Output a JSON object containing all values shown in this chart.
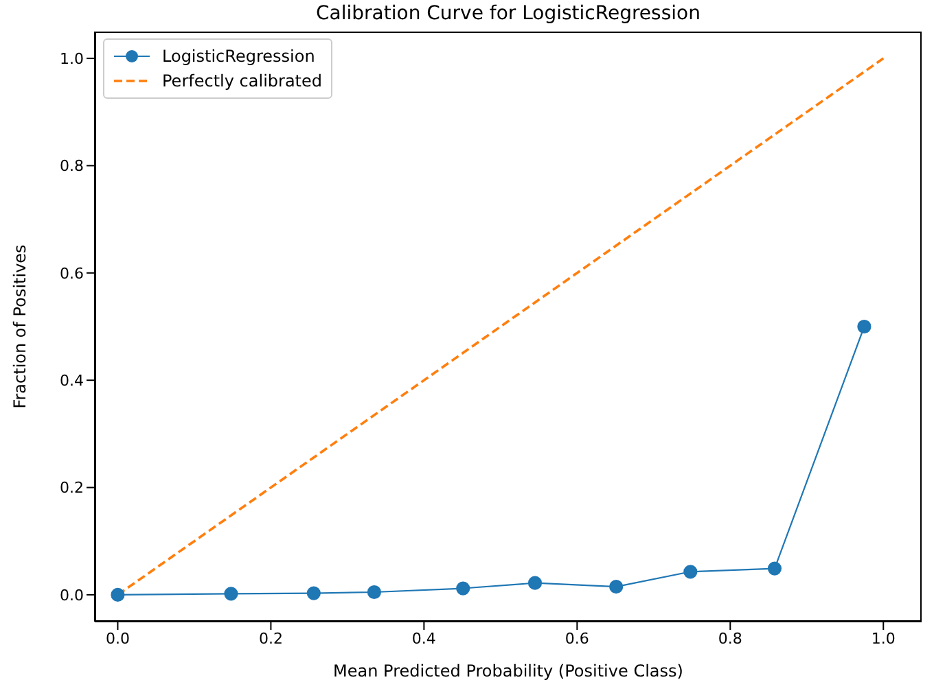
{
  "chart_data": {
    "type": "line",
    "title": "Calibration Curve for LogisticRegression",
    "xlabel": "Mean Predicted Probability (Positive Class)",
    "ylabel": "Fraction of Positives",
    "xlim": [
      -0.03,
      1.05
    ],
    "ylim": [
      -0.05,
      1.05
    ],
    "xticks": [
      {
        "value": 0,
        "label": "0.0"
      },
      {
        "value": 0.2,
        "label": "0.2"
      },
      {
        "value": 0.4,
        "label": "0.4"
      },
      {
        "value": 0.6,
        "label": "0.6"
      },
      {
        "value": 0.8,
        "label": "0.8"
      },
      {
        "value": 1,
        "label": "1.0"
      }
    ],
    "yticks": [
      {
        "value": 0,
        "label": "0.0"
      },
      {
        "value": 0.2,
        "label": "0.2"
      },
      {
        "value": 0.4,
        "label": "0.4"
      },
      {
        "value": 0.6,
        "label": "0.6"
      },
      {
        "value": 0.8,
        "label": "0.8"
      },
      {
        "value": 1,
        "label": "1.0"
      }
    ],
    "grid": false,
    "legend": "top left",
    "series": [
      {
        "name": "LogisticRegression",
        "color": "#1f77b4",
        "marker": "circle",
        "line_style": "solid",
        "x": [
          0,
          0.148,
          0.256,
          0.335,
          0.451,
          0.545,
          0.651,
          0.748,
          0.858,
          0.975
        ],
        "values": [
          0,
          0.002,
          0.003,
          0.005,
          0.012,
          0.022,
          0.015,
          0.043,
          0.049,
          0.5
        ]
      },
      {
        "name": "Perfectly calibrated",
        "color": "#ff7f0e",
        "marker": "none",
        "line_style": "dashed",
        "x": [
          0,
          1
        ],
        "values": [
          0,
          1
        ]
      }
    ]
  }
}
